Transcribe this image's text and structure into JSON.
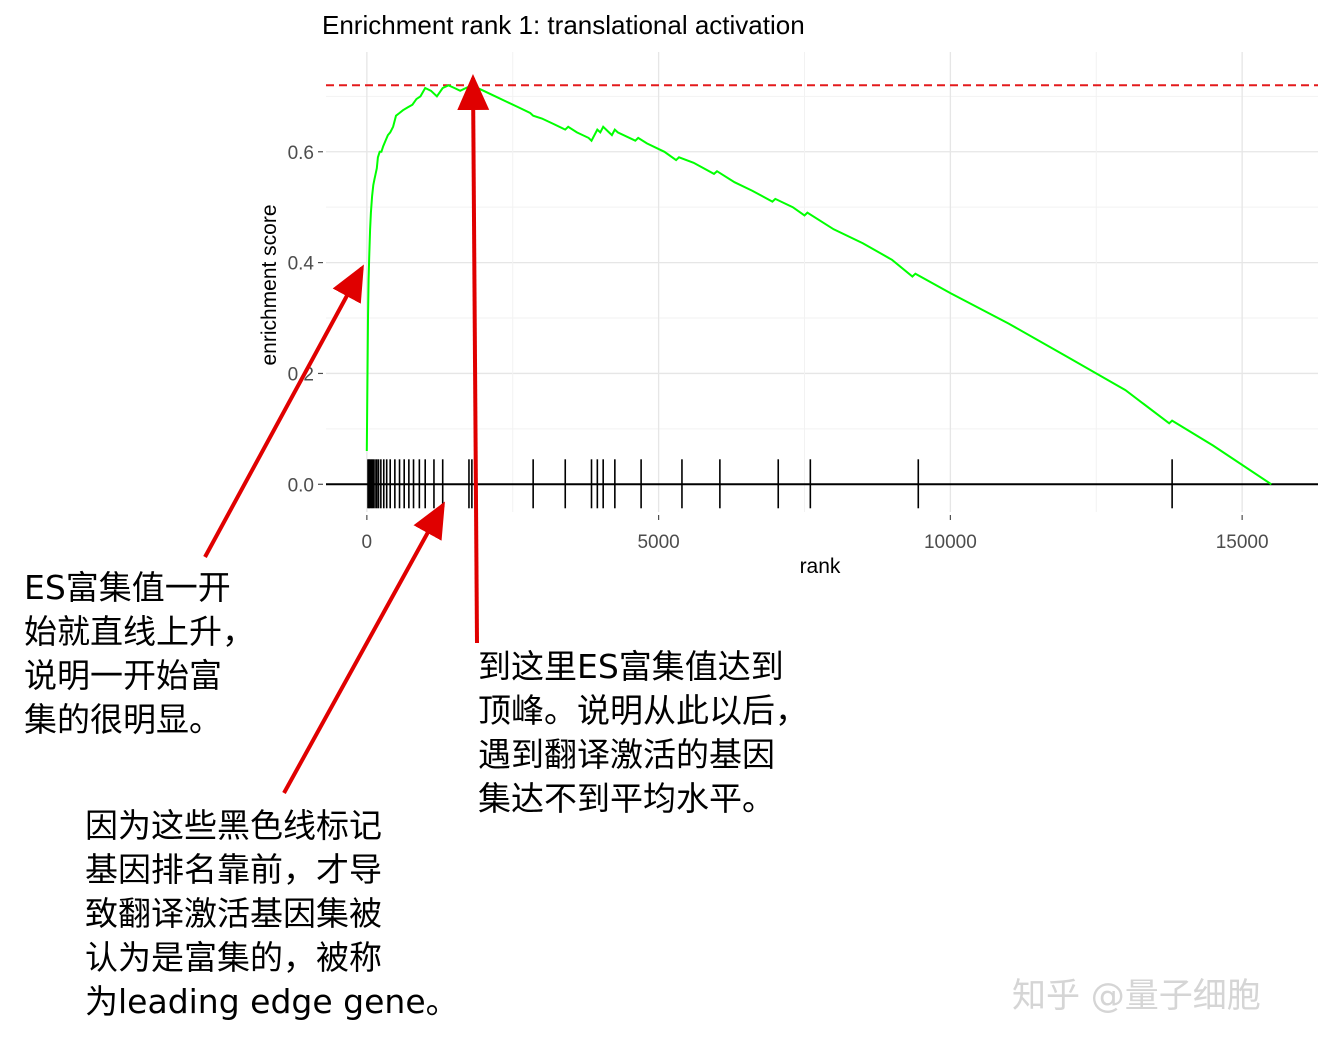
{
  "chart_data": {
    "type": "line",
    "title": "Enrichment rank 1: translational activation",
    "xlabel": "rank",
    "ylabel": "enrichment score",
    "xlim": [
      -700,
      16300
    ],
    "ylim": [
      -0.05,
      0.78
    ],
    "x_ticks": [
      0,
      5000,
      10000,
      15000
    ],
    "x_tick_labels": [
      "0",
      "5000",
      "10000",
      "15000"
    ],
    "y_ticks": [
      0.0,
      0.2,
      0.4,
      0.6
    ],
    "y_tick_labels": [
      "0.0",
      "0.2",
      "0.4",
      "0.6"
    ],
    "grid": true,
    "legend": "none",
    "colors": {
      "curve": "#00ff00",
      "max_line": "#e41a1c",
      "hits": "#000000",
      "arrow": "#e00000"
    },
    "max_es": 0.72,
    "series": [
      {
        "x": [
          0,
          10,
          20,
          30,
          40,
          55,
          70,
          90,
          110,
          130,
          150,
          170,
          190,
          220,
          250,
          280,
          320,
          360,
          400,
          450,
          500,
          560,
          620,
          700,
          780,
          850,
          920,
          1000,
          1100,
          1200,
          1300,
          1400,
          1500,
          1600,
          1700,
          1800,
          2000,
          2200,
          2400,
          2600,
          2800,
          2850,
          3000,
          3200,
          3400,
          3450,
          3600,
          3800,
          3850,
          3950,
          4000,
          4050,
          4150,
          4200,
          4250,
          4300,
          4600,
          4650,
          4800,
          5100,
          5300,
          5350,
          5600,
          5950,
          6000,
          6300,
          6600,
          6950,
          7000,
          7300,
          7500,
          7550,
          8000,
          8500,
          9000,
          9350,
          9400,
          10000,
          11000,
          12000,
          13000,
          13750,
          13800,
          14500,
          15500
        ],
        "y": [
          0.06,
          0.18,
          0.3,
          0.37,
          0.41,
          0.46,
          0.49,
          0.52,
          0.54,
          0.55,
          0.56,
          0.57,
          0.59,
          0.6,
          0.6,
          0.61,
          0.62,
          0.63,
          0.635,
          0.645,
          0.665,
          0.67,
          0.675,
          0.68,
          0.685,
          0.695,
          0.7,
          0.715,
          0.71,
          0.7,
          0.715,
          0.72,
          0.715,
          0.71,
          0.715,
          0.72,
          0.71,
          0.7,
          0.69,
          0.68,
          0.67,
          0.665,
          0.66,
          0.65,
          0.64,
          0.645,
          0.635,
          0.625,
          0.62,
          0.64,
          0.635,
          0.645,
          0.635,
          0.63,
          0.64,
          0.635,
          0.62,
          0.625,
          0.615,
          0.6,
          0.585,
          0.59,
          0.58,
          0.56,
          0.565,
          0.545,
          0.53,
          0.51,
          0.515,
          0.5,
          0.485,
          0.49,
          0.46,
          0.435,
          0.405,
          0.375,
          0.38,
          0.345,
          0.29,
          0.23,
          0.17,
          0.11,
          0.115,
          0.07,
          0.0
        ]
      }
    ],
    "hits": [
      20,
      40,
      60,
      85,
      110,
      140,
      170,
      200,
      240,
      290,
      340,
      400,
      480,
      560,
      640,
      720,
      800,
      900,
      1000,
      1150,
      1300,
      1750,
      1800,
      2850,
      3400,
      3850,
      3950,
      4050,
      4250,
      4700,
      5400,
      6050,
      7050,
      7600,
      9450,
      13800
    ]
  },
  "annotations": {
    "note1": "ES富集值一开\n始就直线上升，\n说明一开始富\n集的很明显。",
    "note2": "因为这些黑色线标记\n基因排名靠前，才导\n致翻译激活基因集被\n认为是富集的，被称\n为leading edge gene。",
    "note3": "到这里ES富集值达到\n顶峰。说明从此以后，\n遇到翻译激活的基因\n集达不到平均水平。"
  },
  "watermark": "知乎 @量子细胞"
}
